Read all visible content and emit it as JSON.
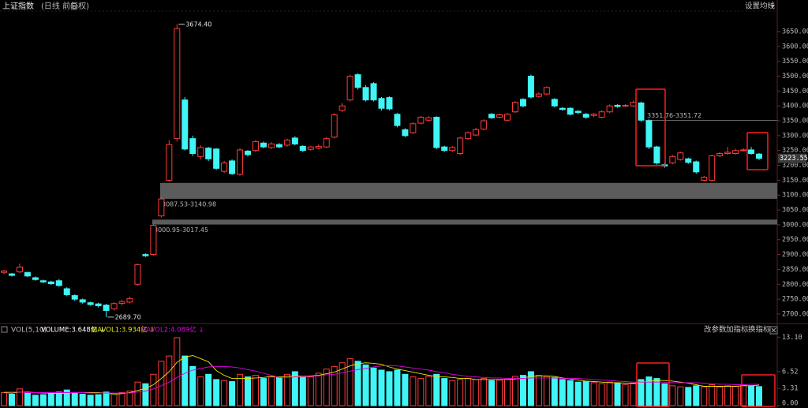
{
  "header": {
    "title": "上证指数",
    "subtitle": "(日线 前复权)",
    "settings": "设置均线"
  },
  "indicator_panel": {
    "name": "VOL(5,10)",
    "buttons": [
      "改参数",
      "加指标",
      "换指标"
    ]
  },
  "chart_data": [
    {
      "type": "candlestick",
      "up_color": "#ff3b3b",
      "down_color": "#3ff5f5",
      "ylim": [
        2668,
        3719
      ],
      "yticks": [
        {
          "value": 2700,
          "label": "2700.00"
        },
        {
          "value": 2750,
          "label": "2750.00"
        },
        {
          "value": 2800,
          "label": "2800.00"
        },
        {
          "value": 2850,
          "label": "2850.00"
        },
        {
          "value": 2900,
          "label": "2900.00"
        },
        {
          "value": 2950,
          "label": "2950.00"
        },
        {
          "value": 3000,
          "label": "3000.00"
        },
        {
          "value": 3050,
          "label": "3050.00"
        },
        {
          "value": 3100,
          "label": "3100.00"
        },
        {
          "value": 3150,
          "label": "3150.00"
        },
        {
          "value": 3200,
          "label": "3200.00"
        },
        {
          "value": 3250,
          "label": "3250.00"
        },
        {
          "value": 3300,
          "label": "3300.00"
        },
        {
          "value": 3350,
          "label": "3350.00"
        },
        {
          "value": 3400,
          "label": "3400.00"
        },
        {
          "value": 3450,
          "label": "3450.00"
        },
        {
          "value": 3500,
          "label": "3500.00"
        },
        {
          "value": 3550,
          "label": "3550.00"
        },
        {
          "value": 3600,
          "label": "3600.00"
        },
        {
          "value": 3650,
          "label": "3650.00"
        }
      ],
      "open": [
        2840,
        2835,
        2842,
        2840,
        2822,
        2812,
        2808,
        2812,
        2785,
        2762,
        2748,
        2738,
        2734,
        2730,
        2718,
        2736,
        2740,
        2800,
        2900,
        2900,
        3030,
        3150,
        3290,
        3420,
        3290,
        3230,
        3258,
        3255,
        3180,
        3215,
        3170,
        3248,
        3250,
        3275,
        3260,
        3270,
        3268,
        3292,
        3264,
        3254,
        3258,
        3262,
        3295,
        3385,
        3420,
        3505,
        3462,
        3475,
        3425,
        3428,
        3372,
        3320,
        3310,
        3342,
        3352,
        3362,
        3262,
        3250,
        3240,
        3290,
        3302,
        3322,
        3372,
        3362,
        3352,
        3380,
        3422,
        3500,
        3432,
        3440,
        3422,
        3392,
        3392,
        3382,
        3372,
        3368,
        3362,
        3380,
        3402,
        3400,
        3400,
        3410,
        3350,
        3262,
        3202,
        3208,
        3220,
        3222,
        3212,
        3150,
        3150,
        3232,
        3240,
        3240,
        3250,
        3252,
        3238
      ],
      "close": [
        2845,
        2830,
        2858,
        2828,
        2816,
        2808,
        2802,
        2796,
        2765,
        2750,
        2740,
        2732,
        2728,
        2712,
        2735,
        2742,
        2752,
        2866,
        2896,
        2998,
        3087,
        3270,
        3660,
        3255,
        3240,
        3260,
        3222,
        3190,
        3208,
        3172,
        3252,
        3236,
        3280,
        3262,
        3272,
        3262,
        3285,
        3272,
        3250,
        3262,
        3264,
        3290,
        3370,
        3400,
        3500,
        3462,
        3420,
        3420,
        3392,
        3390,
        3334,
        3300,
        3340,
        3362,
        3360,
        3260,
        3250,
        3260,
        3292,
        3310,
        3320,
        3350,
        3360,
        3370,
        3372,
        3412,
        3400,
        3430,
        3440,
        3462,
        3400,
        3388,
        3372,
        3378,
        3362,
        3372,
        3380,
        3400,
        3398,
        3402,
        3412,
        3352,
        3262,
        3208,
        3198,
        3230,
        3242,
        3210,
        3178,
        3160,
        3232,
        3240,
        3244,
        3250,
        3252,
        3240,
        3223.55
      ],
      "low": [
        2835,
        2826,
        2838,
        2824,
        2812,
        2804,
        2798,
        2792,
        2760,
        2745,
        2735,
        2728,
        2722,
        2689.7,
        2712,
        2730,
        2736,
        2795,
        2892,
        2896,
        3025,
        3145,
        3280,
        3250,
        3232,
        3220,
        3215,
        3185,
        3175,
        3168,
        3165,
        3230,
        3245,
        3258,
        3255,
        3258,
        3262,
        3268,
        3245,
        3250,
        3254,
        3258,
        3290,
        3380,
        3415,
        3455,
        3415,
        3415,
        3385,
        3385,
        3328,
        3295,
        3305,
        3338,
        3348,
        3255,
        3245,
        3245,
        3235,
        3286,
        3298,
        3318,
        3356,
        3358,
        3348,
        3376,
        3395,
        3425,
        3428,
        3436,
        3395,
        3384,
        3368,
        3372,
        3356,
        3362,
        3358,
        3376,
        3394,
        3396,
        3396,
        3346,
        3255,
        3202,
        3192,
        3204,
        3216,
        3205,
        3172,
        3146,
        3146,
        3228,
        3236,
        3236,
        3246,
        3236,
        3218
      ],
      "high": [
        2848,
        2838,
        2870,
        2842,
        2826,
        2816,
        2812,
        2818,
        2790,
        2766,
        2752,
        2742,
        2738,
        2734,
        2740,
        2748,
        2758,
        2870,
        2904,
        3005,
        3095,
        3285,
        3674.4,
        3430,
        3300,
        3268,
        3262,
        3258,
        3215,
        3220,
        3258,
        3252,
        3285,
        3280,
        3278,
        3275,
        3290,
        3298,
        3268,
        3266,
        3270,
        3295,
        3375,
        3410,
        3505,
        3510,
        3470,
        3480,
        3430,
        3432,
        3376,
        3325,
        3345,
        3366,
        3365,
        3365,
        3266,
        3265,
        3296,
        3314,
        3326,
        3355,
        3376,
        3374,
        3376,
        3416,
        3426,
        3505,
        3445,
        3466,
        3426,
        3396,
        3396,
        3386,
        3376,
        3376,
        3385,
        3405,
        3406,
        3406,
        3418,
        3414,
        3355,
        3266,
        3208,
        3235,
        3246,
        3226,
        3216,
        3165,
        3236,
        3245,
        3262,
        3256,
        3258,
        3262,
        3242
      ],
      "high_labels": [
        null,
        null,
        null,
        null,
        null,
        null,
        null,
        null,
        null,
        null,
        null,
        null,
        null,
        null,
        null,
        null,
        null,
        null,
        null,
        null,
        null,
        null,
        "3674.40",
        null,
        null,
        null,
        null,
        null,
        null,
        null,
        null,
        null,
        null,
        null,
        null,
        null,
        null,
        null,
        null,
        null,
        null,
        null,
        null,
        null,
        null,
        null,
        null,
        null,
        null,
        null,
        null,
        null,
        null,
        null,
        null,
        null,
        null,
        null,
        null,
        null,
        null,
        null,
        null,
        null,
        null,
        null,
        null,
        null,
        null,
        null,
        null,
        null,
        null,
        null,
        null,
        null,
        null,
        null,
        null,
        null,
        null,
        null,
        null,
        null,
        null,
        null,
        null,
        null,
        null,
        null,
        null,
        null,
        null,
        null,
        null,
        null,
        null
      ],
      "low_labels": [
        null,
        null,
        null,
        null,
        null,
        null,
        null,
        null,
        null,
        null,
        null,
        null,
        null,
        "2689.70",
        null,
        null,
        null,
        null,
        null,
        null,
        null,
        null,
        null,
        null,
        null,
        null,
        null,
        null,
        null,
        null,
        null,
        null,
        null,
        null,
        null,
        null,
        null,
        null,
        null,
        null,
        null,
        null,
        null,
        null,
        null,
        null,
        null,
        null,
        null,
        null,
        null,
        null,
        null,
        null,
        null,
        null,
        null,
        null,
        null,
        null,
        null,
        null,
        null,
        null,
        null,
        null,
        null,
        null,
        null,
        null,
        null,
        null,
        null,
        null,
        null,
        null,
        null,
        null,
        null,
        null,
        null,
        null,
        null,
        null,
        null,
        null,
        null,
        null,
        null,
        null,
        null,
        null,
        null,
        null,
        null,
        null,
        null
      ],
      "last_price_label": "3223.55",
      "zones": [
        {
          "range": [
            3087.53,
            3140.98
          ],
          "label": "3087.53-3140.98"
        },
        {
          "range": [
            3000.95,
            3017.45
          ],
          "label": "3000.95-3017.45"
        }
      ],
      "levels": [
        {
          "range": [
            3351.72,
            3351.76
          ],
          "label": "3351.76-3351.72"
        }
      ]
    },
    {
      "type": "volume",
      "ylim": [
        0,
        14.2
      ],
      "yticks": [
        {
          "value": 0,
          "label": "0.00"
        },
        {
          "value": 3.31,
          "label": "3.31"
        },
        {
          "value": 6.52,
          "label": "6.52"
        },
        {
          "value": 13.1,
          "label": "13.10"
        }
      ],
      "series": [
        {
          "name": "VOLUME:3.648亿 ↓",
          "color": "#ffffff",
          "values": [
            2.5,
            2.2,
            3.2,
            2.4,
            2.0,
            2.1,
            2.3,
            2.6,
            3.0,
            2.4,
            2.2,
            2.0,
            2.1,
            2.6,
            2.3,
            2.5,
            2.8,
            4.5,
            4.2,
            6.0,
            8.5,
            9.5,
            13.0,
            9.5,
            7.5,
            5.5,
            6.0,
            5.0,
            4.8,
            4.6,
            6.0,
            5.5,
            5.8,
            5.2,
            5.5,
            5.4,
            6.0,
            6.5,
            5.6,
            5.5,
            6.2,
            7.0,
            7.5,
            8.2,
            9.0,
            8.5,
            7.8,
            7.2,
            6.8,
            6.5,
            6.8,
            6.0,
            5.5,
            5.2,
            5.6,
            6.0,
            5.2,
            4.8,
            5.0,
            5.2,
            5.0,
            5.2,
            4.8,
            4.9,
            5.0,
            5.6,
            5.8,
            6.5,
            5.8,
            5.6,
            5.4,
            5.0,
            4.8,
            4.5,
            4.6,
            4.4,
            4.2,
            4.5,
            4.3,
            4.0,
            4.2,
            5.0,
            5.5,
            5.2,
            4.2,
            3.8,
            3.6,
            3.5,
            3.8,
            3.6,
            4.0,
            3.6,
            3.8,
            3.7,
            3.9,
            3.8,
            3.648
          ]
        },
        {
          "name": "MAVOL1:3.934亿 ↓",
          "color": "#e6e600",
          "values": [
            2.5,
            2.4,
            2.6,
            2.6,
            2.5,
            2.4,
            2.4,
            2.3,
            2.4,
            2.5,
            2.5,
            2.5,
            2.5,
            2.4,
            2.2,
            2.3,
            2.5,
            2.9,
            3.3,
            4.0,
            5.2,
            6.5,
            8.3,
            9.3,
            9.6,
            9.0,
            8.4,
            6.7,
            5.8,
            5.2,
            5.2,
            5.2,
            5.3,
            5.4,
            5.6,
            5.5,
            5.6,
            5.7,
            5.6,
            5.7,
            5.8,
            6.1,
            6.4,
            7.0,
            7.6,
            8.0,
            8.2,
            8.1,
            7.9,
            7.4,
            7.0,
            6.7,
            6.4,
            6.1,
            5.8,
            5.6,
            5.5,
            5.4,
            5.2,
            5.2,
            5.0,
            5.0,
            5.0,
            5.0,
            5.0,
            5.1,
            5.3,
            5.6,
            5.7,
            5.7,
            5.6,
            5.3,
            5.1,
            4.9,
            4.7,
            4.6,
            4.5,
            4.4,
            4.4,
            4.3,
            4.3,
            4.4,
            4.7,
            4.8,
            4.8,
            4.7,
            4.5,
            4.3,
            4.0,
            3.7,
            3.7,
            3.7,
            3.7,
            3.7,
            3.8,
            3.8,
            3.934
          ]
        },
        {
          "name": "MAVOL2:4.089亿 ↓",
          "color": "#e000e0",
          "values": [
            2.6,
            2.6,
            2.6,
            2.5,
            2.5,
            2.5,
            2.5,
            2.5,
            2.5,
            2.5,
            2.5,
            2.4,
            2.4,
            2.4,
            2.4,
            2.4,
            2.4,
            2.6,
            2.8,
            3.2,
            3.8,
            4.5,
            5.4,
            6.2,
            6.8,
            7.1,
            7.4,
            7.5,
            7.5,
            7.4,
            7.2,
            6.9,
            6.6,
            6.2,
            5.8,
            5.4,
            5.4,
            5.5,
            5.5,
            5.6,
            5.7,
            5.9,
            6.0,
            6.3,
            6.6,
            6.9,
            7.1,
            7.4,
            7.6,
            7.7,
            7.6,
            7.4,
            7.2,
            7.0,
            6.8,
            6.5,
            6.3,
            6.0,
            5.8,
            5.6,
            5.5,
            5.4,
            5.3,
            5.3,
            5.2,
            5.2,
            5.2,
            5.3,
            5.3,
            5.3,
            5.3,
            5.2,
            5.2,
            5.2,
            5.1,
            5.0,
            4.9,
            4.8,
            4.7,
            4.6,
            4.5,
            4.5,
            4.5,
            4.5,
            4.5,
            4.4,
            4.4,
            4.4,
            4.4,
            4.3,
            4.2,
            4.1,
            4.1,
            4.0,
            4.0,
            4.1,
            4.089
          ]
        }
      ]
    }
  ]
}
